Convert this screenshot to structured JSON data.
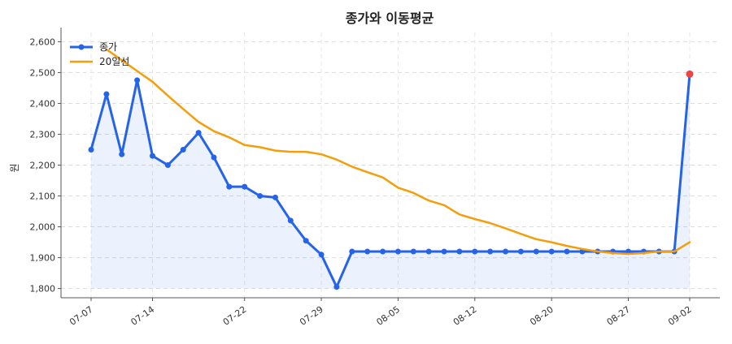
{
  "chart_data": {
    "type": "line",
    "title": "종가와 이동평균",
    "xlabel": "",
    "ylabel": "원",
    "ylim": [
      1770,
      2630
    ],
    "yticks": [
      1800,
      1900,
      2000,
      2100,
      2200,
      2300,
      2400,
      2500,
      2600
    ],
    "ytick_labels": [
      "1,800",
      "1,900",
      "2,000",
      "2,100",
      "2,200",
      "2,300",
      "2,400",
      "2,500",
      "2,600"
    ],
    "xtick_labels": [
      "07-07",
      "07-14",
      "07-22",
      "07-29",
      "08-05",
      "08-12",
      "08-20",
      "08-27",
      "09-02"
    ],
    "xtick_index": [
      0,
      4,
      10,
      15,
      20,
      25,
      30,
      35,
      39
    ],
    "grid": true,
    "legend_position": "top-left",
    "series": [
      {
        "name": "종가",
        "color": "#2563eb",
        "marker": "circle",
        "fill": true,
        "values": [
          2250,
          2430,
          2235,
          2475,
          2230,
          2200,
          2250,
          2305,
          2225,
          2130,
          2130,
          2100,
          2095,
          2020,
          1955,
          1910,
          1805,
          1920,
          1920,
          1920,
          1920,
          1920,
          1920,
          1920,
          1920,
          1920,
          1920,
          1920,
          1920,
          1920,
          1920,
          1920,
          1920,
          1920,
          1920,
          1920,
          1920,
          1920,
          1920,
          2495
        ]
      },
      {
        "name": "20일선",
        "color": "#f59e0b",
        "marker": "none",
        "fill": false,
        "values": [
          null,
          2575,
          2540,
          2505,
          2470,
          2425,
          2382,
          2340,
          2310,
          2290,
          2265,
          2258,
          2247,
          2243,
          2243,
          2235,
          2218,
          2195,
          2177,
          2160,
          2127,
          2110,
          2085,
          2070,
          2040,
          2025,
          2012,
          1995,
          1977,
          1960,
          1950,
          1938,
          1928,
          1920,
          1915,
          1912,
          1915,
          1920,
          1920,
          1950
        ]
      }
    ],
    "highlight_last": {
      "series": "종가",
      "color": "#ef4444"
    }
  }
}
